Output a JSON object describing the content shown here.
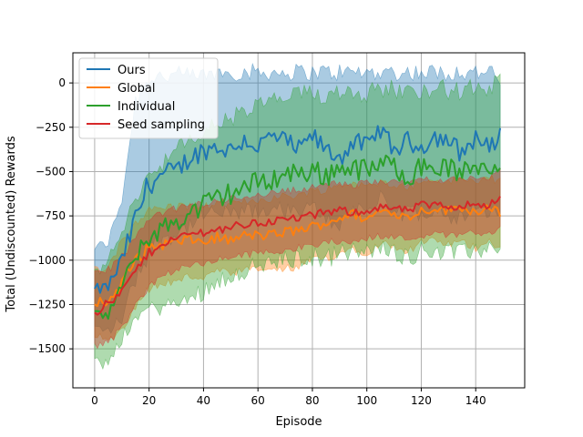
{
  "chart_data": {
    "type": "line",
    "xlabel": "Episode",
    "ylabel": "Total (Undiscounted) Rewards",
    "xlim": [
      -8,
      158
    ],
    "ylim": [
      -1720,
      170
    ],
    "xticks": [
      0,
      20,
      40,
      60,
      80,
      100,
      120,
      140
    ],
    "yticks": [
      0,
      -250,
      -500,
      -750,
      -1000,
      -1250,
      -1500
    ],
    "ytick_labels": [
      "0",
      "−250",
      "−500",
      "−750",
      "−1000",
      "−1250",
      "−1500"
    ],
    "grid": true,
    "legend": "top-left",
    "x_range": [
      0,
      149
    ],
    "series": [
      {
        "name": "Ours",
        "color": "#1f77b4",
        "x": [
          0,
          5,
          10,
          15,
          20,
          25,
          30,
          35,
          40,
          45,
          50,
          55,
          60,
          65,
          70,
          75,
          80,
          85,
          90,
          95,
          100,
          105,
          110,
          115,
          120,
          125,
          130,
          135,
          140,
          145,
          149
        ],
        "values": [
          -1170,
          -1150,
          -1000,
          -770,
          -560,
          -520,
          -500,
          -420,
          -380,
          -360,
          -380,
          -320,
          -360,
          -300,
          -330,
          -380,
          -300,
          -380,
          -420,
          -330,
          -360,
          -260,
          -380,
          -330,
          -360,
          -300,
          -330,
          -400,
          -300,
          -380,
          -290
        ],
        "upper": [
          -930,
          -900,
          -650,
          -100,
          40,
          40,
          40,
          40,
          40,
          60,
          60,
          60,
          60,
          60,
          60,
          60,
          60,
          60,
          60,
          60,
          60,
          60,
          60,
          60,
          60,
          60,
          60,
          60,
          60,
          60,
          10
        ],
        "lower": [
          -1380,
          -1400,
          -1330,
          -1100,
          -950,
          -870,
          -850,
          -800,
          -750,
          -730,
          -750,
          -720,
          -740,
          -700,
          -720,
          -740,
          -700,
          -760,
          -800,
          -700,
          -720,
          -650,
          -760,
          -720,
          -740,
          -700,
          -740,
          -780,
          -700,
          -760,
          -700
        ]
      },
      {
        "name": "Global",
        "color": "#ff7f0e",
        "x": [
          0,
          5,
          10,
          15,
          20,
          25,
          30,
          35,
          40,
          45,
          50,
          55,
          60,
          65,
          70,
          75,
          80,
          85,
          90,
          95,
          100,
          105,
          110,
          115,
          120,
          125,
          130,
          135,
          140,
          145,
          149
        ],
        "values": [
          -1230,
          -1240,
          -1130,
          -1000,
          -930,
          -910,
          -900,
          -880,
          -900,
          -870,
          -890,
          -860,
          -860,
          -860,
          -840,
          -830,
          -810,
          -790,
          -760,
          -740,
          -770,
          -720,
          -730,
          -760,
          -720,
          -710,
          -720,
          -700,
          -730,
          -690,
          -740
        ],
        "upper": [
          -1050,
          -1050,
          -900,
          -780,
          -720,
          -700,
          -700,
          -690,
          -700,
          -680,
          -690,
          -670,
          -660,
          -650,
          -640,
          -630,
          -610,
          -600,
          -580,
          -560,
          -590,
          -560,
          -570,
          -590,
          -560,
          -550,
          -560,
          -540,
          -560,
          -530,
          -560
        ],
        "lower": [
          -1420,
          -1460,
          -1380,
          -1250,
          -1160,
          -1130,
          -1120,
          -1090,
          -1100,
          -1060,
          -1080,
          -1060,
          -1050,
          -1060,
          -1050,
          -1040,
          -1000,
          -990,
          -960,
          -930,
          -960,
          -900,
          -920,
          -950,
          -900,
          -890,
          -910,
          -900,
          -930,
          -880,
          -940
        ]
      },
      {
        "name": "Individual",
        "color": "#2ca02c",
        "x": [
          0,
          5,
          10,
          15,
          20,
          25,
          30,
          35,
          40,
          45,
          50,
          55,
          60,
          65,
          70,
          75,
          80,
          85,
          90,
          95,
          100,
          105,
          110,
          115,
          120,
          125,
          130,
          135,
          140,
          145,
          149
        ],
        "values": [
          -1320,
          -1300,
          -1150,
          -980,
          -870,
          -820,
          -780,
          -740,
          -690,
          -650,
          -620,
          -590,
          -560,
          -540,
          -520,
          -500,
          -500,
          -520,
          -480,
          -470,
          -500,
          -460,
          -470,
          -520,
          -480,
          -470,
          -480,
          -520,
          -460,
          -480,
          -440
        ],
        "upper": [
          -1080,
          -1000,
          -850,
          -650,
          -520,
          -450,
          -380,
          -330,
          -280,
          -230,
          -200,
          -170,
          -130,
          -100,
          -90,
          -70,
          -60,
          -70,
          -40,
          -40,
          -60,
          -30,
          -30,
          -60,
          -30,
          -30,
          -40,
          -50,
          -20,
          -30,
          0
        ],
        "lower": [
          -1560,
          -1600,
          -1440,
          -1320,
          -1280,
          -1260,
          -1250,
          -1220,
          -1170,
          -1120,
          -1080,
          -1060,
          -1030,
          -1020,
          -1000,
          -990,
          -980,
          -990,
          -960,
          -950,
          -960,
          -930,
          -950,
          -980,
          -950,
          -940,
          -950,
          -970,
          -930,
          -950,
          -900
        ]
      },
      {
        "name": "Seed sampling",
        "color": "#d62728",
        "x": [
          0,
          5,
          10,
          15,
          20,
          25,
          30,
          35,
          40,
          45,
          50,
          55,
          60,
          65,
          70,
          75,
          80,
          85,
          90,
          95,
          100,
          105,
          110,
          115,
          120,
          125,
          130,
          135,
          140,
          145,
          149
        ],
        "values": [
          -1290,
          -1250,
          -1180,
          -1060,
          -960,
          -900,
          -880,
          -850,
          -840,
          -830,
          -810,
          -800,
          -790,
          -780,
          -770,
          -760,
          -750,
          -730,
          -720,
          -730,
          -720,
          -700,
          -710,
          -720,
          -690,
          -690,
          -700,
          -690,
          -680,
          -690,
          -650
        ],
        "upper": [
          -1080,
          -1050,
          -980,
          -870,
          -780,
          -730,
          -710,
          -690,
          -680,
          -670,
          -650,
          -640,
          -630,
          -620,
          -610,
          -600,
          -590,
          -570,
          -570,
          -580,
          -560,
          -550,
          -560,
          -570,
          -540,
          -540,
          -550,
          -540,
          -530,
          -540,
          -500
        ],
        "lower": [
          -1480,
          -1460,
          -1380,
          -1260,
          -1150,
          -1080,
          -1060,
          -1030,
          -1020,
          -1000,
          -980,
          -970,
          -960,
          -950,
          -940,
          -930,
          -920,
          -900,
          -890,
          -900,
          -880,
          -860,
          -870,
          -880,
          -860,
          -850,
          -860,
          -850,
          -840,
          -850,
          -820
        ]
      }
    ]
  }
}
